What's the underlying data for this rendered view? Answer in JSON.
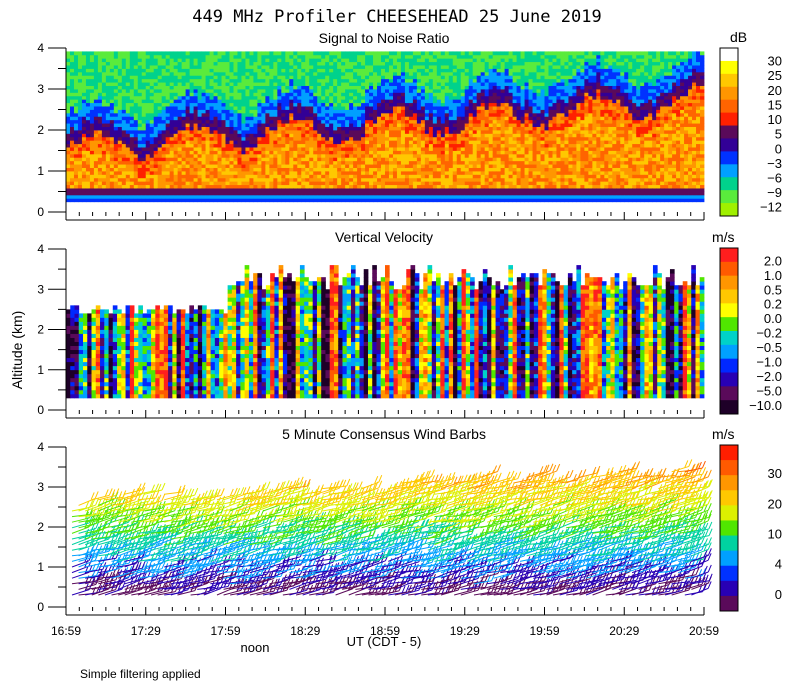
{
  "title": "449 MHz Profiler CHEESEHEAD 25 June 2019",
  "ylabel": "Altitude (km)",
  "xlabel": "UT  (CDT - 5)",
  "noon_label": "noon",
  "footnote": "Simple filtering applied",
  "chart_data": [
    {
      "type": "heatmap",
      "title": "Signal to Noise Ratio",
      "units": "dB",
      "ylim": [
        0,
        4
      ],
      "yticks": [
        "0",
        "1",
        "2",
        "3",
        "4"
      ],
      "colorbar": {
        "labels": [
          "30",
          "25",
          "20",
          "15",
          "10",
          "5",
          "0",
          "−3",
          "−6",
          "−9",
          "−12"
        ],
        "colors": [
          "#ffffff",
          "#ffff00",
          "#ffc800",
          "#ff9600",
          "#ff6400",
          "#ff2000",
          "#5a0a5a",
          "#320096",
          "#0032ff",
          "#00a0ff",
          "#00d28c",
          "#5aeb3c",
          "#a0f000"
        ]
      }
    },
    {
      "type": "heatmap",
      "title": "Vertical Velocity",
      "units": "m/s",
      "ylim": [
        0,
        4
      ],
      "yticks": [
        "0",
        "1",
        "2",
        "3",
        "4"
      ],
      "colorbar": {
        "labels": [
          "2.0",
          "1.0",
          "0.5",
          "0.2",
          "0.0",
          "−0.2",
          "−0.5",
          "−1.0",
          "−2.0",
          "−5.0",
          "−10.0"
        ],
        "colors": [
          "#ff1e1e",
          "#ff5a00",
          "#ff9600",
          "#ffc800",
          "#ffff00",
          "#50e600",
          "#00d2c8",
          "#00a0ff",
          "#0028ff",
          "#2800b4",
          "#5a0a5a",
          "#1e0028"
        ]
      }
    },
    {
      "type": "wind_barbs",
      "title": "5 Minute Consensus Wind Barbs",
      "units": "m/s",
      "ylim": [
        0,
        4
      ],
      "yticks": [
        "0",
        "1",
        "2",
        "3",
        "4"
      ],
      "colorbar": {
        "labels": [
          "30",
          "20",
          "10",
          "4",
          "0"
        ],
        "colors": [
          "#ff1e00",
          "#ff5a00",
          "#ff9600",
          "#ffc800",
          "#dcf000",
          "#50e600",
          "#00d2a0",
          "#00a0ff",
          "#0032ff",
          "#2800b4",
          "#5a0a5a"
        ]
      }
    }
  ],
  "x_ticks": [
    "16:59",
    "17:29",
    "17:59",
    "18:29",
    "18:59",
    "19:29",
    "19:59",
    "20:29",
    "20:59"
  ]
}
